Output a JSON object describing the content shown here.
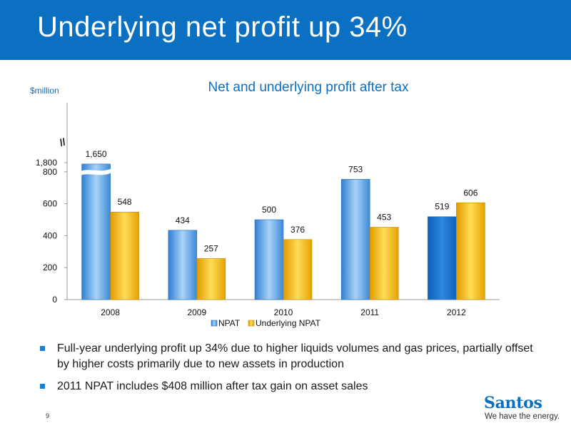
{
  "header": {
    "title": "Underlying net profit up 34%"
  },
  "chart_data": {
    "type": "bar",
    "title": "Net and underlying profit after tax",
    "ylabel": "$million",
    "xlabel": "",
    "categories": [
      "2008",
      "2009",
      "2010",
      "2011",
      "2012"
    ],
    "series": [
      {
        "name": "NPAT",
        "values": [
          1650,
          434,
          500,
          753,
          519
        ],
        "color": "#5aa5e6"
      },
      {
        "name": "Underlying NPAT",
        "values": [
          548,
          257,
          376,
          453,
          606
        ],
        "color": "#f5b400"
      }
    ],
    "data_labels": {
      "NPAT": [
        "1,650",
        "434",
        "500",
        "753",
        "519"
      ],
      "Underlying NPAT": [
        "548",
        "257",
        "376",
        "453",
        "606"
      ]
    },
    "y_ticks": [
      "0",
      "200",
      "400",
      "600",
      "800",
      "1,800"
    ],
    "y_tick_values": [
      0,
      200,
      400,
      600,
      800,
      1800
    ],
    "axis_break": {
      "symbol": "//",
      "between": [
        800,
        1800
      ]
    },
    "ylim": [
      0,
      1800
    ],
    "grid": false,
    "legend_position": "bottom-center"
  },
  "bullets": [
    "Full-year underlying profit up 34% due to higher liquids volumes and gas prices, partially offset by higher costs primarily due to new assets in production",
    "2011 NPAT includes $408 million after tax gain on asset sales"
  ],
  "footer": {
    "page_number": "9",
    "logo_name": "Santos",
    "logo_tagline": "We have the energy."
  },
  "colors": {
    "header_bg": "#0b70c2",
    "bullet": "#1a7fd4",
    "logo": "#0a6fc0"
  }
}
